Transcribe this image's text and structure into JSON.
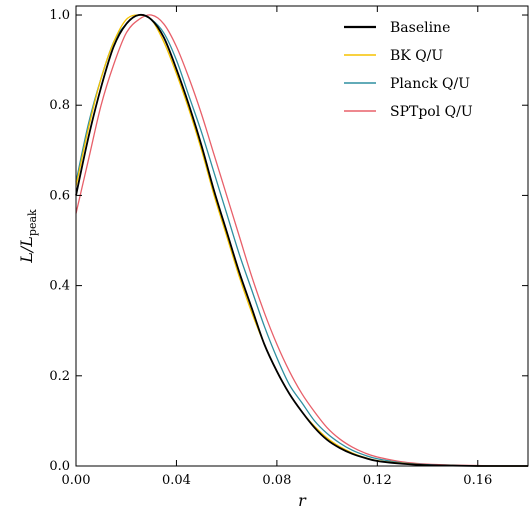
{
  "chart_data": {
    "type": "line",
    "title": "",
    "xlabel": "r",
    "ylabel": "L/L_peak",
    "ylabel_main": "L/L",
    "ylabel_sub": "peak",
    "xlim": [
      0.0,
      0.18
    ],
    "ylim": [
      0.0,
      1.02
    ],
    "xticks": [
      0.0,
      0.04,
      0.08,
      0.12,
      0.16
    ],
    "xtick_labels": [
      "0.00",
      "0.04",
      "0.08",
      "0.12",
      "0.16"
    ],
    "yticks": [
      0.0,
      0.2,
      0.4,
      0.6,
      0.8,
      1.0
    ],
    "ytick_labels": [
      "0.0",
      "0.2",
      "0.4",
      "0.6",
      "0.8",
      "1.0"
    ],
    "grid": false,
    "legend_position": "top-right",
    "x": [
      0.0,
      0.005,
      0.01,
      0.015,
      0.02,
      0.025,
      0.03,
      0.035,
      0.04,
      0.045,
      0.05,
      0.055,
      0.06,
      0.065,
      0.07,
      0.075,
      0.08,
      0.085,
      0.09,
      0.095,
      0.1,
      0.105,
      0.11,
      0.115,
      0.12,
      0.13,
      0.14,
      0.15,
      0.16,
      0.17,
      0.18
    ],
    "series": [
      {
        "name": "Baseline",
        "color": "#000000",
        "values": [
          0.6,
          0.73,
          0.84,
          0.93,
          0.98,
          1.0,
          0.99,
          0.95,
          0.88,
          0.8,
          0.71,
          0.61,
          0.52,
          0.43,
          0.35,
          0.27,
          0.21,
          0.16,
          0.12,
          0.085,
          0.058,
          0.04,
          0.027,
          0.018,
          0.011,
          0.005,
          0.002,
          0.001,
          0.0,
          0.0,
          0.0
        ]
      },
      {
        "name": "BK Q/U",
        "color": "#f5c200",
        "values": [
          0.62,
          0.75,
          0.86,
          0.94,
          0.99,
          1.0,
          0.99,
          0.94,
          0.87,
          0.79,
          0.7,
          0.6,
          0.51,
          0.42,
          0.34,
          0.27,
          0.21,
          0.16,
          0.12,
          0.088,
          0.062,
          0.043,
          0.029,
          0.019,
          0.012,
          0.006,
          0.002,
          0.001,
          0.0,
          0.0,
          0.0
        ]
      },
      {
        "name": "Planck Q/U",
        "color": "#2e8fa0",
        "values": [
          0.63,
          0.76,
          0.86,
          0.94,
          0.98,
          1.0,
          0.99,
          0.96,
          0.9,
          0.82,
          0.74,
          0.65,
          0.56,
          0.47,
          0.39,
          0.31,
          0.24,
          0.18,
          0.14,
          0.1,
          0.072,
          0.051,
          0.035,
          0.024,
          0.016,
          0.007,
          0.003,
          0.001,
          0.0,
          0.0,
          0.0
        ]
      },
      {
        "name": "SPTpol Q/U",
        "color": "#e8606a",
        "values": [
          0.56,
          0.68,
          0.8,
          0.89,
          0.96,
          0.99,
          1.0,
          0.98,
          0.93,
          0.86,
          0.78,
          0.69,
          0.6,
          0.51,
          0.42,
          0.34,
          0.27,
          0.21,
          0.16,
          0.12,
          0.085,
          0.06,
          0.042,
          0.029,
          0.02,
          0.009,
          0.004,
          0.002,
          0.001,
          0.0,
          0.0
        ]
      }
    ]
  }
}
